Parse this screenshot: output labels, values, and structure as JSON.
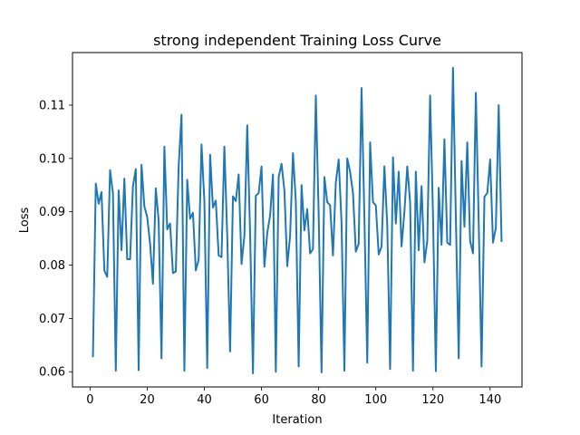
{
  "chart_data": {
    "type": "line",
    "title": "strong independent Training Loss Curve",
    "xlabel": "Iteration",
    "ylabel": "Loss",
    "xlim": [
      -6.15,
      151.15
    ],
    "ylim": [
      0.05715,
      0.11985
    ],
    "xticks": [
      0,
      20,
      40,
      60,
      80,
      100,
      120,
      140
    ],
    "xtick_labels": [
      "0",
      "20",
      "40",
      "60",
      "80",
      "100",
      "120",
      "140"
    ],
    "yticks": [
      0.06,
      0.07,
      0.08,
      0.09,
      0.1,
      0.11
    ],
    "ytick_labels": [
      "0.06",
      "0.07",
      "0.08",
      "0.09",
      "0.10",
      "0.11"
    ],
    "grid": false,
    "legend": false,
    "series": [
      {
        "name": "Loss",
        "color": "#1f77b4",
        "x": [
          1,
          2,
          3,
          4,
          5,
          6,
          7,
          8,
          9,
          10,
          11,
          12,
          13,
          14,
          15,
          16,
          17,
          18,
          19,
          20,
          21,
          22,
          23,
          24,
          25,
          26,
          27,
          28,
          29,
          30,
          31,
          32,
          33,
          34,
          35,
          36,
          37,
          38,
          39,
          40,
          41,
          42,
          43,
          44,
          45,
          46,
          47,
          48,
          49,
          50,
          51,
          52,
          53,
          54,
          55,
          56,
          57,
          58,
          59,
          60,
          61,
          62,
          63,
          64,
          65,
          66,
          67,
          68,
          69,
          70,
          71,
          72,
          73,
          74,
          75,
          76,
          77,
          78,
          79,
          80,
          81,
          82,
          83,
          84,
          85,
          86,
          87,
          88,
          89,
          90,
          91,
          92,
          93,
          94,
          95,
          96,
          97,
          98,
          99,
          100,
          101,
          102,
          103,
          104,
          105,
          106,
          107,
          108,
          109,
          110,
          111,
          112,
          113,
          114,
          115,
          116,
          117,
          118,
          119,
          120,
          121,
          122,
          123,
          124,
          125,
          126,
          127,
          128,
          129,
          130,
          131,
          132,
          133,
          134,
          135,
          136,
          137,
          138,
          139,
          140,
          141,
          142,
          143,
          144
        ],
        "values": [
          0.0629,
          0.0953,
          0.0915,
          0.0937,
          0.079,
          0.0778,
          0.0978,
          0.0935,
          0.0602,
          0.094,
          0.0828,
          0.0962,
          0.0811,
          0.0811,
          0.0948,
          0.098,
          0.0603,
          0.0988,
          0.091,
          0.089,
          0.084,
          0.0765,
          0.0944,
          0.0883,
          0.0625,
          0.1022,
          0.0867,
          0.0878,
          0.0785,
          0.0788,
          0.0985,
          0.1082,
          0.0602,
          0.096,
          0.0887,
          0.0898,
          0.079,
          0.081,
          0.1026,
          0.092,
          0.0607,
          0.1007,
          0.0908,
          0.0921,
          0.0818,
          0.0815,
          0.1022,
          0.0855,
          0.0638,
          0.0929,
          0.092,
          0.097,
          0.0802,
          0.0855,
          0.1062,
          0.086,
          0.0597,
          0.093,
          0.0935,
          0.0985,
          0.0797,
          0.086,
          0.0893,
          0.097,
          0.06,
          0.0965,
          0.099,
          0.094,
          0.0798,
          0.0855,
          0.101,
          0.092,
          0.061,
          0.095,
          0.0865,
          0.0905,
          0.0822,
          0.083,
          0.1118,
          0.0895,
          0.0599,
          0.0965,
          0.0918,
          0.0912,
          0.0818,
          0.0955,
          0.0998,
          0.088,
          0.0602,
          0.1,
          0.0975,
          0.0935,
          0.0825,
          0.084,
          0.1132,
          0.089,
          0.0617,
          0.103,
          0.0918,
          0.0912,
          0.082,
          0.0835,
          0.0985,
          0.0875,
          0.0605,
          0.1002,
          0.0878,
          0.0975,
          0.0835,
          0.09,
          0.0985,
          0.0918,
          0.0602,
          0.0975,
          0.0828,
          0.0948,
          0.0805,
          0.0845,
          0.1118,
          0.0895,
          0.0601,
          0.0945,
          0.0838,
          0.1036,
          0.0842,
          0.0838,
          0.117,
          0.089,
          0.0625,
          0.0995,
          0.0872,
          0.103,
          0.0845,
          0.0822,
          0.1123,
          0.088,
          0.061,
          0.0928,
          0.0935,
          0.0998,
          0.0842,
          0.087,
          0.11,
          0.0845
        ]
      }
    ]
  }
}
